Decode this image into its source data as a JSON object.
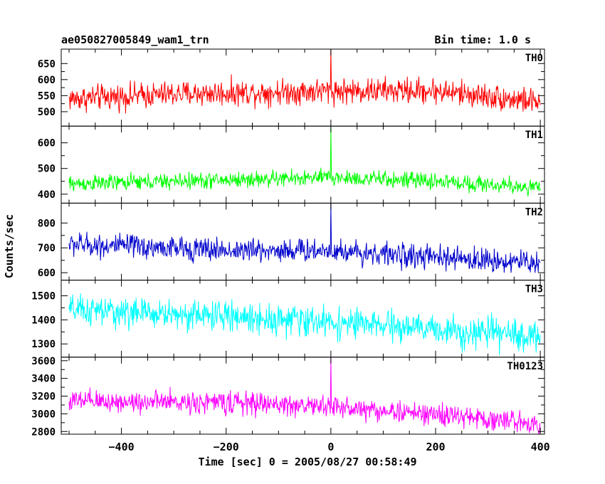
{
  "chart_data": {
    "type": "line",
    "title": "ae050827005849_wam1_trn",
    "subtitle": "Bin time: 1.0 s",
    "xlabel": "Time [sec] 0 = 2005/08/27 00:58:49",
    "ylabel": "Counts/sec",
    "xlim": [
      -515,
      408
    ],
    "xticks": [
      "−400",
      "−200",
      "0",
      "200",
      "400"
    ],
    "bin_time_s": 1.0,
    "x_start": -500,
    "x_end": 400,
    "series": [
      {
        "name": "TH0",
        "color": "#ff0000",
        "ylim": [
          455,
          695
        ],
        "yticks": [
          "500",
          "550",
          "600",
          "650"
        ],
        "trend": [
          [
            -500,
            540
          ],
          [
            -300,
            555
          ],
          [
            0,
            565
          ],
          [
            200,
            565
          ],
          [
            400,
            530
          ]
        ],
        "noise_amplitude": 35,
        "spike": {
          "x": 0,
          "y": 695
        }
      },
      {
        "name": "TH1",
        "color": "#00ff00",
        "ylim": [
          365,
          665
        ],
        "yticks": [
          "400",
          "500",
          "600"
        ],
        "trend": [
          [
            -500,
            440
          ],
          [
            -200,
            455
          ],
          [
            0,
            465
          ],
          [
            200,
            450
          ],
          [
            400,
            425
          ]
        ],
        "noise_amplitude": 28,
        "spike": {
          "x": 0,
          "y": 665
        }
      },
      {
        "name": "TH2",
        "color": "#0000cc",
        "ylim": [
          570,
          880
        ],
        "yticks": [
          "600",
          "700",
          "800"
        ],
        "trend": [
          [
            -500,
            715
          ],
          [
            -200,
            690
          ],
          [
            0,
            690
          ],
          [
            200,
            660
          ],
          [
            400,
            640
          ]
        ],
        "noise_amplitude": 42,
        "spike": {
          "x": 0,
          "y": 880
        }
      },
      {
        "name": "TH3",
        "color": "#00ffff",
        "ylim": [
          1245,
          1565
        ],
        "yticks": [
          "1300",
          "1400",
          "1500"
        ],
        "trend": [
          [
            -500,
            1440
          ],
          [
            -200,
            1415
          ],
          [
            0,
            1390
          ],
          [
            200,
            1360
          ],
          [
            400,
            1330
          ]
        ],
        "noise_amplitude": 55,
        "spike": null
      },
      {
        "name": "TH0123",
        "color": "#ff00ff",
        "ylim": [
          2770,
          3640
        ],
        "yticks": [
          "2800",
          "3000",
          "3200",
          "3400",
          "3600"
        ],
        "trend": [
          [
            -500,
            3140
          ],
          [
            -200,
            3130
          ],
          [
            0,
            3080
          ],
          [
            200,
            2990
          ],
          [
            400,
            2890
          ]
        ],
        "noise_amplitude": 110,
        "spike": {
          "x": 0,
          "y": 3640
        }
      }
    ]
  }
}
